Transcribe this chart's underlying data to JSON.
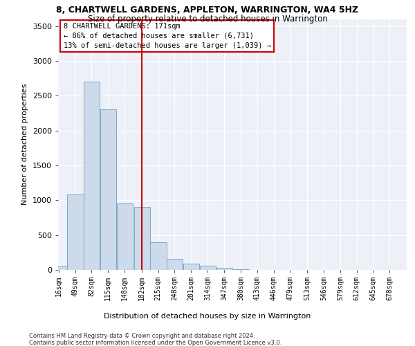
{
  "title1": "8, CHARTWELL GARDENS, APPLETON, WARRINGTON, WA4 5HZ",
  "title2": "Size of property relative to detached houses in Warrington",
  "xlabel": "Distribution of detached houses by size in Warrington",
  "ylabel": "Number of detached properties",
  "footer1": "Contains HM Land Registry data © Crown copyright and database right 2024.",
  "footer2": "Contains public sector information licensed under the Open Government Licence v3.0.",
  "annotation_line1": "8 CHARTWELL GARDENS: 171sqm",
  "annotation_line2": "← 86% of detached houses are smaller (6,731)",
  "annotation_line3": "13% of semi-detached houses are larger (1,039) →",
  "bar_color": "#ccdaeb",
  "bar_edge_color": "#7aaac8",
  "ref_line_color": "#cc0000",
  "categories": [
    "16sqm",
    "49sqm",
    "82sqm",
    "115sqm",
    "148sqm",
    "182sqm",
    "215sqm",
    "248sqm",
    "281sqm",
    "314sqm",
    "347sqm",
    "380sqm",
    "413sqm",
    "446sqm",
    "479sqm",
    "513sqm",
    "546sqm",
    "579sqm",
    "612sqm",
    "645sqm",
    "678sqm"
  ],
  "bin_edges": [
    16,
    49,
    82,
    115,
    148,
    182,
    215,
    248,
    281,
    314,
    347,
    380,
    413,
    446,
    479,
    513,
    546,
    579,
    612,
    645,
    678
  ],
  "bin_width": 33,
  "values": [
    50,
    1080,
    2700,
    2300,
    950,
    900,
    400,
    160,
    90,
    55,
    30,
    10,
    4,
    2,
    1,
    0,
    0,
    0,
    0,
    0,
    0
  ],
  "ref_line_x": 182,
  "ylim": [
    0,
    3600
  ],
  "yticks": [
    0,
    500,
    1000,
    1500,
    2000,
    2500,
    3000,
    3500
  ],
  "background_color": "#edf1f7",
  "plot_bg_color": "#edf1f7",
  "grid_color": "#ffffff",
  "title1_fontsize": 9,
  "title2_fontsize": 8.5
}
